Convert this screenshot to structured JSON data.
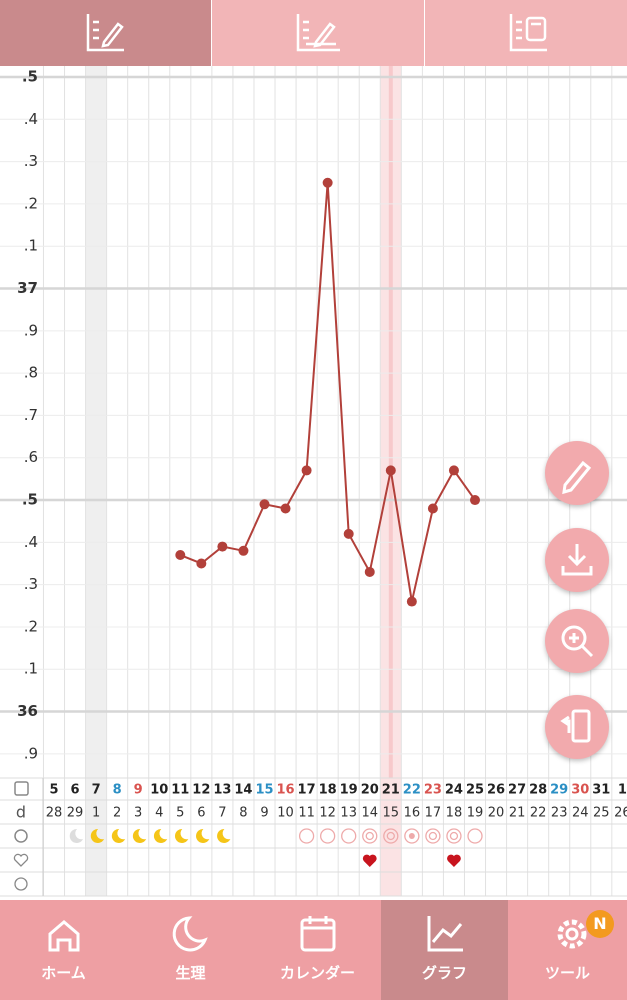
{
  "nav": [
    "ホーム",
    "生理",
    "カレンダー",
    "グラフ",
    "ツール"
  ],
  "badge": "N",
  "chart_data": {
    "type": "line",
    "color": "#b2403a",
    "categories": [
      "5",
      "6",
      "7",
      "8",
      "9",
      "10",
      "11",
      "12",
      "13",
      "14",
      "15",
      "16",
      "17",
      "18",
      "19",
      "20",
      "21",
      "22",
      "23",
      "24",
      "25",
      "26",
      "27",
      "28",
      "29",
      "30",
      "31",
      "1"
    ],
    "category_colors": [
      "#222",
      "#222",
      "#222",
      "#2b8fc4",
      "#d9534f",
      "#222",
      "#222",
      "#222",
      "#222",
      "#222",
      "#2b8fc4",
      "#d9534f",
      "#222",
      "#222",
      "#222",
      "#222",
      "#222",
      "#2b8fc4",
      "#d9534f",
      "#222",
      "#222",
      "#222",
      "#222",
      "#222",
      "#2b8fc4",
      "#d9534f",
      "#222",
      "#222"
    ],
    "cycle_label": "d",
    "cycle_days": [
      "28",
      "29",
      "1",
      "2",
      "3",
      "4",
      "5",
      "6",
      "7",
      "8",
      "9",
      "10",
      "11",
      "12",
      "13",
      "14",
      "15",
      "16",
      "17",
      "18",
      "19",
      "20",
      "21",
      "22",
      "23",
      "24",
      "25",
      "26"
    ],
    "values": [
      null,
      null,
      null,
      null,
      null,
      null,
      36.37,
      36.35,
      36.39,
      36.38,
      36.49,
      36.48,
      36.57,
      37.25,
      36.42,
      36.33,
      36.57,
      36.26,
      36.48,
      36.57,
      36.5,
      null,
      null,
      null,
      null,
      null,
      null,
      null
    ],
    "ylim": [
      35.85,
      37.5
    ],
    "yticks": [
      {
        "value": 37.5,
        "label": ".5"
      },
      {
        "value": 37.4,
        "label": ".4"
      },
      {
        "value": 37.3,
        "label": ".3"
      },
      {
        "value": 37.2,
        "label": ".2"
      },
      {
        "value": 37.1,
        "label": ".1"
      },
      37,
      {
        "value": 36.9,
        "label": ".9"
      },
      {
        "value": 36.8,
        "label": ".8"
      },
      {
        "value": 36.7,
        "label": ".7"
      },
      {
        "value": 36.6,
        "label": ".6"
      },
      {
        "value": 36.5,
        "label": ".5"
      },
      {
        "value": 36.4,
        "label": ".4"
      },
      {
        "value": 36.3,
        "label": ".3"
      },
      {
        "value": 36.2,
        "label": ".2"
      },
      {
        "value": 36.1,
        "label": ".1"
      },
      36,
      {
        "value": 35.9,
        "label": ".9"
      }
    ],
    "grid": true
  }
}
